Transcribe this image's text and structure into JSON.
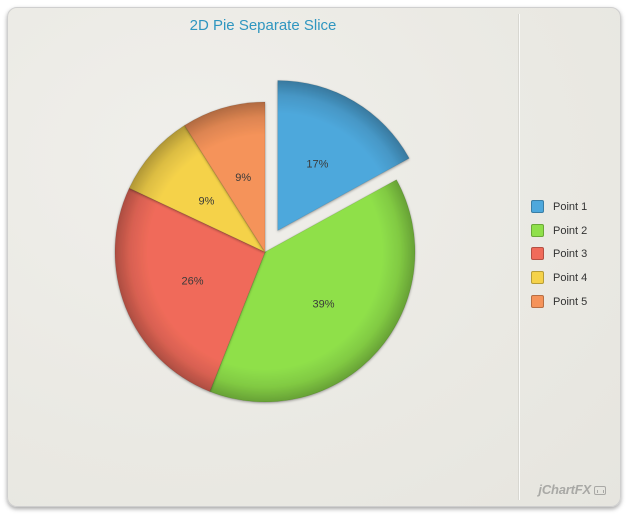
{
  "chart_data": {
    "type": "pie",
    "title": "2D Pie Separate Slice",
    "categories": [
      "Point 1",
      "Point 2",
      "Point 3",
      "Point 4",
      "Point 5"
    ],
    "values": [
      17,
      39,
      26,
      9,
      9
    ],
    "labels": [
      "17%",
      "39%",
      "26%",
      "9%",
      "9%"
    ],
    "colors": [
      "#4ea8dc",
      "#8fe04a",
      "#f06b5a",
      "#f5d24a",
      "#f5935a"
    ],
    "exploded_slice": "Point 1",
    "legend_position": "right",
    "start_angle": "top, clockwise"
  },
  "legend": {
    "items": [
      {
        "label": "Point 1",
        "color": "#4ea8dc"
      },
      {
        "label": "Point 2",
        "color": "#8fe04a"
      },
      {
        "label": "Point 3",
        "color": "#f06b5a"
      },
      {
        "label": "Point 4",
        "color": "#f5d24a"
      },
      {
        "label": "Point 5",
        "color": "#f5935a"
      }
    ]
  },
  "branding": {
    "logo_text": "jChartFX",
    "logo_icon": "chart-icon"
  }
}
